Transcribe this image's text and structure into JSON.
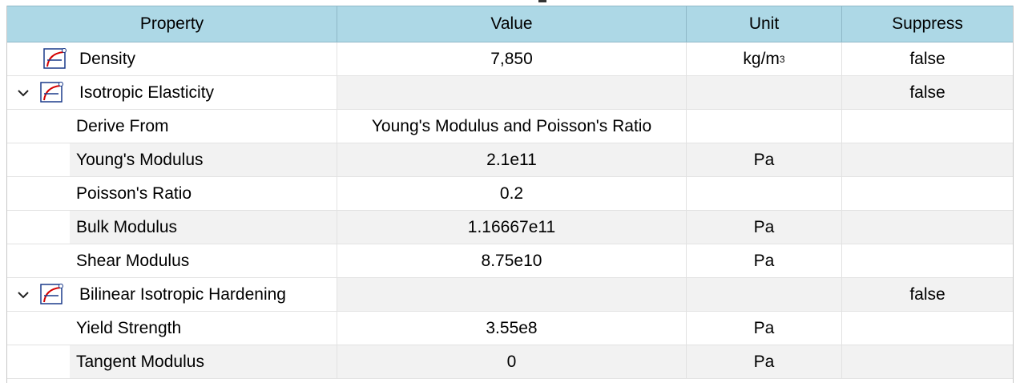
{
  "columns": {
    "property": "Property",
    "value": "Value",
    "unit": "Unit",
    "suppress": "Suppress"
  },
  "rows": [
    {
      "kind": "root",
      "property": "Density",
      "value": "7,850",
      "unit": "kg/m",
      "unit_sup": "3",
      "suppress": "false",
      "icon": "material-curve-icon"
    },
    {
      "kind": "group",
      "property": "Isotropic Elasticity",
      "value": "",
      "unit": "",
      "suppress": "false",
      "icon": "material-curve-icon",
      "expanded": true
    },
    {
      "kind": "child",
      "property": "Derive From",
      "value": "Young's Modulus and Poisson's Ratio",
      "unit": "",
      "suppress": ""
    },
    {
      "kind": "child",
      "property": "Young's Modulus",
      "value": "2.1e11",
      "unit": "Pa",
      "suppress": ""
    },
    {
      "kind": "child",
      "property": "Poisson's Ratio",
      "value": "0.2",
      "unit": "",
      "suppress": ""
    },
    {
      "kind": "child",
      "property": "Bulk Modulus",
      "value": "1.16667e11",
      "unit": "Pa",
      "suppress": ""
    },
    {
      "kind": "child",
      "property": "Shear Modulus",
      "value": "8.75e10",
      "unit": "Pa",
      "suppress": ""
    },
    {
      "kind": "group",
      "property": "Bilinear Isotropic Hardening",
      "value": "",
      "unit": "",
      "suppress": "false",
      "icon": "material-curve-icon",
      "expanded": true
    },
    {
      "kind": "child",
      "property": "Yield Strength",
      "value": "3.55e8",
      "unit": "Pa",
      "suppress": ""
    },
    {
      "kind": "child",
      "property": "Tangent Modulus",
      "value": "0",
      "unit": "Pa",
      "suppress": ""
    }
  ],
  "colors": {
    "header_bg": "#add8e6",
    "alt_row_bg": "#f2f2f2",
    "icon_curve": "#d40000",
    "icon_axes": "#1a3a8a"
  }
}
